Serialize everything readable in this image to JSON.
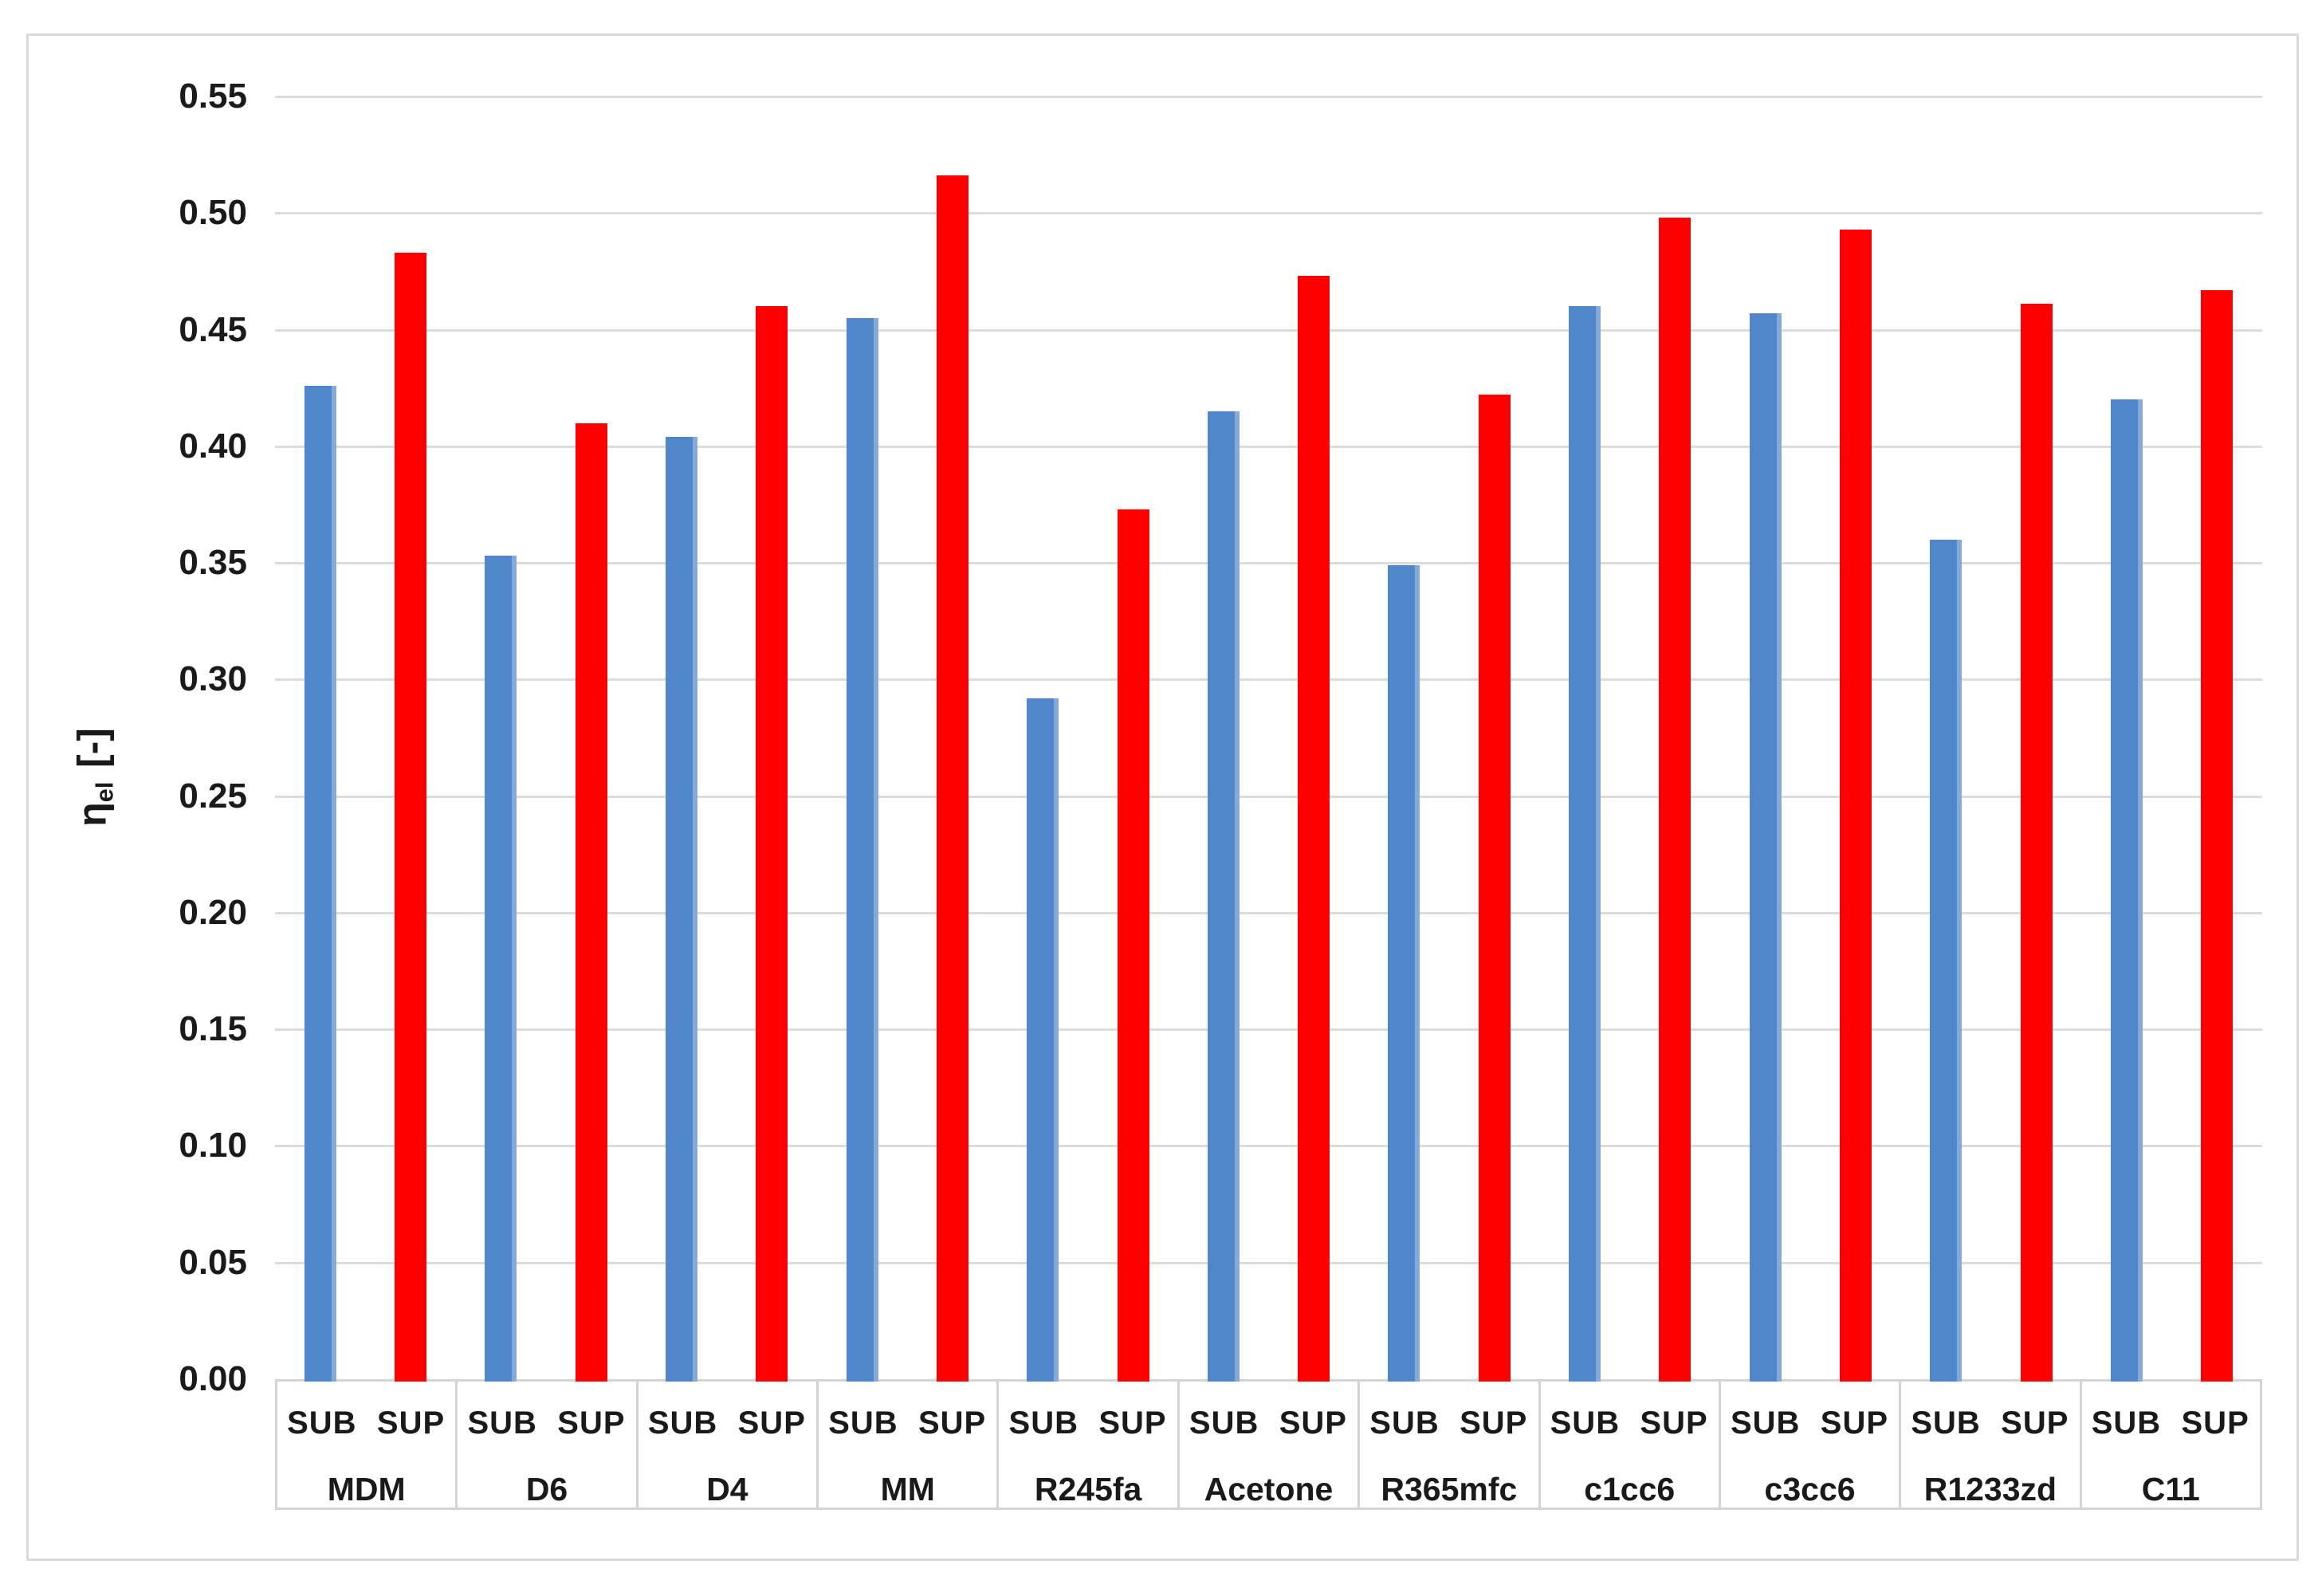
{
  "chart_data": {
    "type": "bar",
    "title": "",
    "ylabel": {
      "main": "η",
      "sub": "el",
      "unit": "[-]"
    },
    "ylim": [
      0.0,
      0.55
    ],
    "ytick_step": 0.05,
    "ytick_labels": [
      "0.00",
      "0.05",
      "0.10",
      "0.15",
      "0.20",
      "0.25",
      "0.30",
      "0.35",
      "0.40",
      "0.45",
      "0.50",
      "0.55"
    ],
    "grid": true,
    "legend_position": "none",
    "categories": [
      "MDM",
      "D6",
      "D4",
      "MM",
      "R245fa",
      "Acetone",
      "R365mfc",
      "c1cc6",
      "c3cc6",
      "R1233zd",
      "C11"
    ],
    "bar_labels": [
      "SUB",
      "SUP"
    ],
    "series": [
      {
        "name": "SUB",
        "color": "#5086CA",
        "values": [
          0.426,
          0.353,
          0.404,
          0.455,
          0.292,
          0.415,
          0.349,
          0.46,
          0.457,
          0.36,
          0.42
        ]
      },
      {
        "name": "SUP",
        "color": "#FF0000",
        "values": [
          0.483,
          0.41,
          0.46,
          0.516,
          0.373,
          0.473,
          0.422,
          0.498,
          0.493,
          0.461,
          0.467
        ]
      }
    ]
  },
  "style": {
    "grid_color": "#dcdcdc",
    "table_border_color": "#d4d4d4",
    "figure_border_color": "#dbdbdb",
    "text_color": "#1a1a1a",
    "background": "#ffffff"
  }
}
